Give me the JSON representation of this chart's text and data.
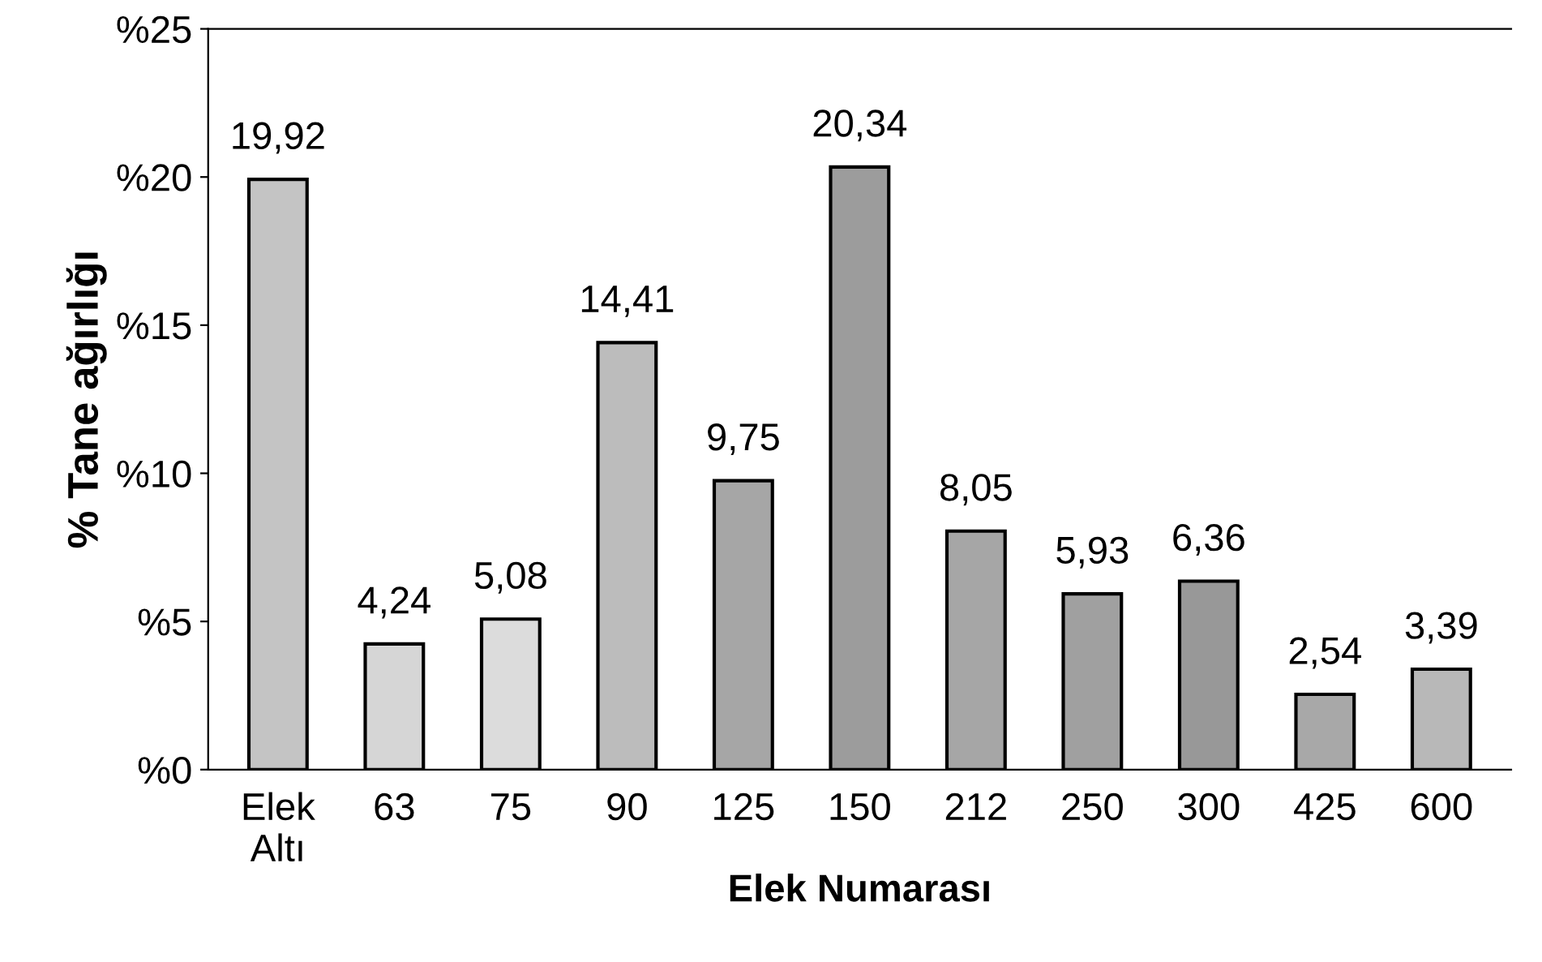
{
  "chart_data": {
    "type": "bar",
    "xlabel": "Elek Numarası",
    "ylabel": "% Tane ağırlığı",
    "categories": [
      "Elek\nAltı",
      "63",
      "75",
      "90",
      "125",
      "150",
      "212",
      "250",
      "300",
      "425",
      "600"
    ],
    "values": [
      19.92,
      4.24,
      5.08,
      14.41,
      9.75,
      20.34,
      8.05,
      5.93,
      6.36,
      2.54,
      3.39
    ],
    "value_labels": [
      "19,92",
      "4,24",
      "5,08",
      "14,41",
      "9,75",
      "20,34",
      "8,05",
      "5,93",
      "6,36",
      "2,54",
      "3,39"
    ],
    "colors": [
      "#c4c4c4",
      "#d6d6d6",
      "#dcdcdc",
      "#bcbcbc",
      "#a6a6a6",
      "#9c9c9c",
      "#a6a6a6",
      "#a0a0a0",
      "#989898",
      "#a8a8a8",
      "#b8b8b8"
    ],
    "ylim": [
      0,
      25
    ],
    "yticks": [
      {
        "value": 0,
        "label": "%0"
      },
      {
        "value": 5,
        "label": "%5"
      },
      {
        "value": 10,
        "label": "%10"
      },
      {
        "value": 15,
        "label": "%15"
      },
      {
        "value": 20,
        "label": "%20"
      },
      {
        "value": 25,
        "label": "%25"
      }
    ],
    "grid": false,
    "legend": false
  }
}
